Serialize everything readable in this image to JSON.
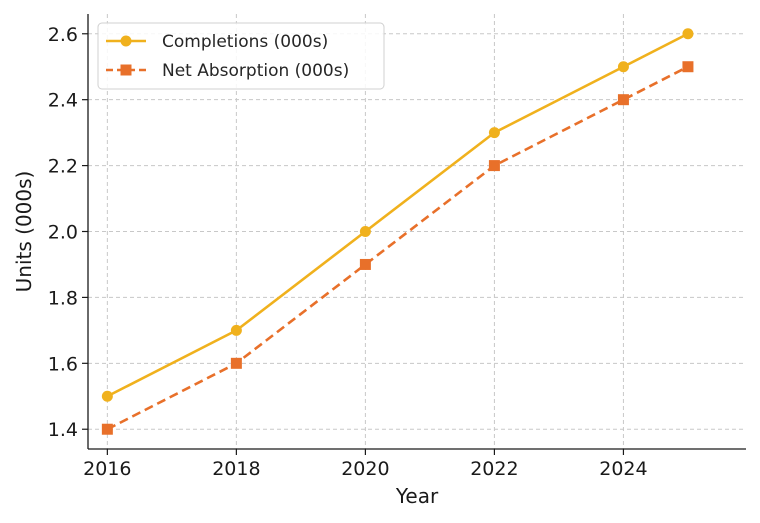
{
  "chart_data": {
    "type": "line",
    "title": "",
    "xlabel": "Year",
    "ylabel": "Units (000s)",
    "x": [
      2016,
      2018,
      2020,
      2022,
      2024,
      2025
    ],
    "xticks": [
      "2016",
      "2018",
      "2020",
      "2022",
      "2024"
    ],
    "yticks": [
      "1.4",
      "1.6",
      "1.8",
      "2.0",
      "2.2",
      "2.4",
      "2.6"
    ],
    "xlim": [
      2015.7,
      2025.9
    ],
    "ylim": [
      1.34,
      2.66
    ],
    "grid": true,
    "legend_position": "top-left",
    "series": [
      {
        "name": "Completions (000s)",
        "values": [
          1.5,
          1.7,
          2.0,
          2.3,
          2.5,
          2.6
        ],
        "color": "#f0b11d",
        "marker": "circle",
        "line_style": "solid"
      },
      {
        "name": "Net Absorption (000s)",
        "values": [
          1.4,
          1.6,
          1.9,
          2.2,
          2.4,
          2.5
        ],
        "color": "#e8702a",
        "marker": "square",
        "line_style": "dashed"
      }
    ]
  }
}
